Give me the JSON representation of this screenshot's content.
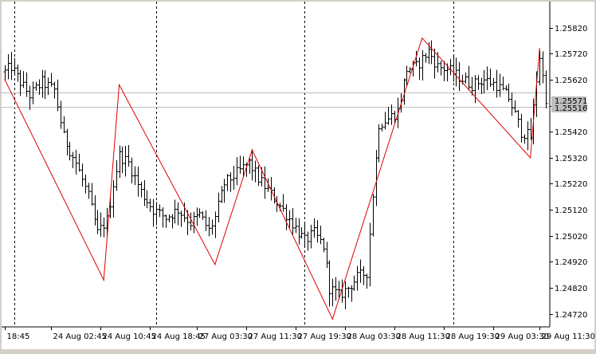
{
  "chart_data": {
    "type": "bar",
    "style": "ohlc",
    "background": "#ffffff",
    "bar_color": "#000000",
    "zigzag_color": "#e00000",
    "hline_color": "#bcbcbc",
    "current_price_label": "1.25516",
    "current_price_label_stack": "1.25571",
    "ylim": [
      1.2467,
      1.2592
    ],
    "y_ticks": [
      "1.25820",
      "1.25720",
      "1.25620",
      "1.25520",
      "1.25420",
      "1.25320",
      "1.25220",
      "1.25120",
      "1.25020",
      "1.24920",
      "1.24820",
      "1.24720"
    ],
    "x_ticks": [
      "18:45",
      "24 Aug 02:45",
      "24 Aug 10:45",
      "24 Aug 18:45",
      "27 Aug 03:30",
      "27 Aug 11:30",
      "27 Aug 19:30",
      "28 Aug 03:30",
      "28 Aug 11:30",
      "28 Aug 19:30",
      "29 Aug 03:30",
      "29 Aug 11:30"
    ],
    "x_tick_bars": [
      0,
      15,
      31,
      47,
      62,
      78,
      94,
      110,
      126,
      142,
      158,
      173
    ],
    "separator_bars": [
      3,
      49,
      97,
      145
    ],
    "bar_count": 176,
    "hlines": [
      1.25516,
      1.25571
    ],
    "zigzag": [
      {
        "bar": 0,
        "price": 1.2562
      },
      {
        "bar": 32,
        "price": 1.2485
      },
      {
        "bar": 37,
        "price": 1.256
      },
      {
        "bar": 68,
        "price": 1.2491
      },
      {
        "bar": 80,
        "price": 1.2535
      },
      {
        "bar": 106,
        "price": 1.247
      },
      {
        "bar": 135,
        "price": 1.2578
      },
      {
        "bar": 170,
        "price": 1.2532
      },
      {
        "bar": 173,
        "price": 1.2574
      }
    ],
    "anchors": [
      [
        0,
        1.2565
      ],
      [
        2,
        1.2567
      ],
      [
        5,
        1.2561
      ],
      [
        8,
        1.2556
      ],
      [
        12,
        1.2561
      ],
      [
        16,
        1.2558
      ],
      [
        19,
        1.254
      ],
      [
        23,
        1.253
      ],
      [
        27,
        1.2517
      ],
      [
        30,
        1.2503
      ],
      [
        33,
        1.2508
      ],
      [
        35,
        1.2522
      ],
      [
        37,
        1.2533
      ],
      [
        40,
        1.253
      ],
      [
        44,
        1.2519
      ],
      [
        48,
        1.2512
      ],
      [
        52,
        1.2509
      ],
      [
        56,
        1.2512
      ],
      [
        60,
        1.2507
      ],
      [
        63,
        1.251
      ],
      [
        66,
        1.2504
      ],
      [
        68,
        1.2509
      ],
      [
        71,
        1.2522
      ],
      [
        75,
        1.2526
      ],
      [
        79,
        1.253
      ],
      [
        82,
        1.2524
      ],
      [
        86,
        1.2518
      ],
      [
        90,
        1.2512
      ],
      [
        94,
        1.2505
      ],
      [
        97,
        1.25
      ],
      [
        100,
        1.2503
      ],
      [
        103,
        1.2498
      ],
      [
        105,
        1.2482
      ],
      [
        108,
        1.2479
      ],
      [
        111,
        1.2482
      ],
      [
        114,
        1.2486
      ],
      [
        117,
        1.2488
      ],
      [
        119,
        1.2518
      ],
      [
        121,
        1.2545
      ],
      [
        124,
        1.2547
      ],
      [
        127,
        1.255
      ],
      [
        130,
        1.2566
      ],
      [
        133,
        1.2567
      ],
      [
        137,
        1.2573
      ],
      [
        140,
        1.2567
      ],
      [
        143,
        1.2566
      ],
      [
        147,
        1.2563
      ],
      [
        151,
        1.256
      ],
      [
        155,
        1.2562
      ],
      [
        159,
        1.256
      ],
      [
        163,
        1.2555
      ],
      [
        167,
        1.2542
      ],
      [
        170,
        1.254
      ],
      [
        172,
        1.2562
      ],
      [
        173,
        1.2571
      ],
      [
        175,
        1.2555
      ]
    ]
  }
}
